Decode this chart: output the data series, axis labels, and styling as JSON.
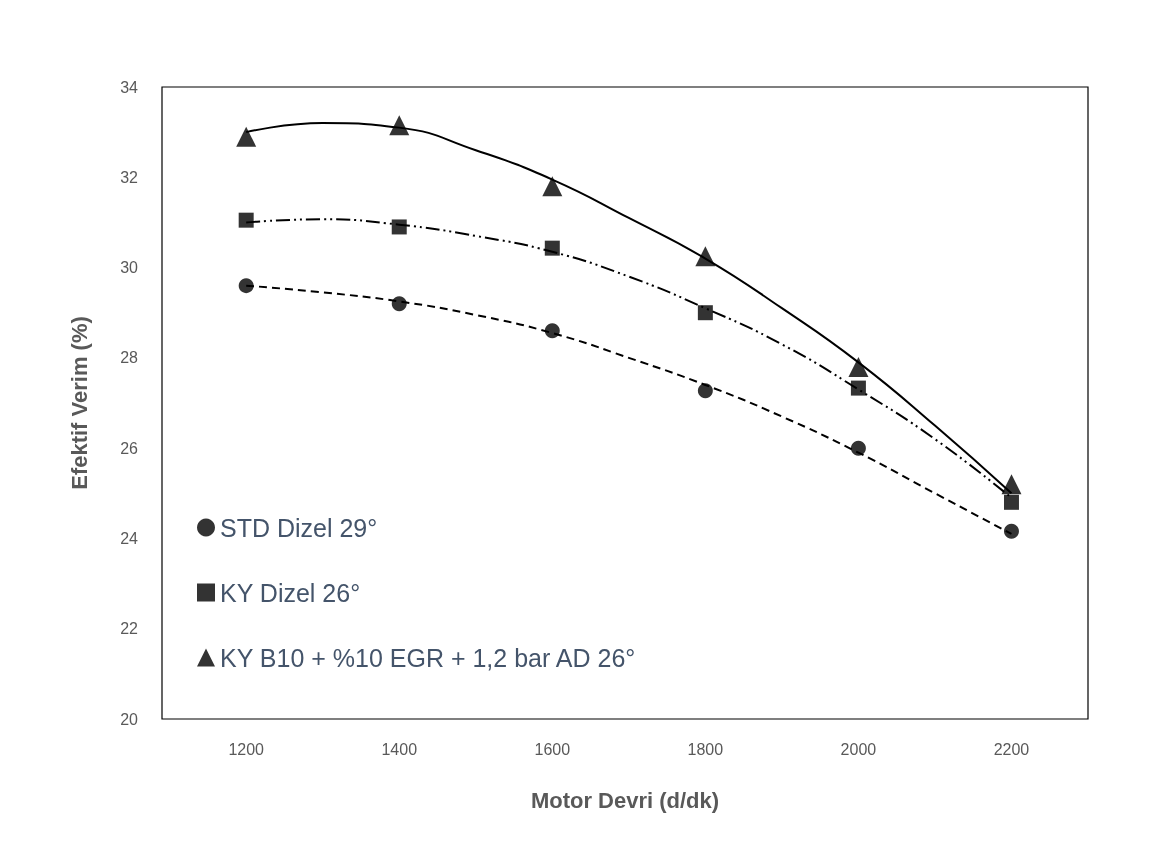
{
  "chart_data": {
    "type": "scatter",
    "xlabel": "Motor Devri (d/dk)",
    "ylabel": "Efektif Verim (%)",
    "xlim": [
      1090,
      2300
    ],
    "xticks": [
      1200,
      1400,
      1600,
      1800,
      2000,
      2200
    ],
    "ylim": [
      20,
      34
    ],
    "yticks": [
      20,
      22,
      24,
      26,
      28,
      30,
      32,
      34
    ],
    "grid": false,
    "legend": "bottom left",
    "x": [
      1200,
      1400,
      1600,
      1800,
      2000,
      2200
    ],
    "series": [
      {
        "name": "STD Dizel 29°",
        "color": "#000000",
        "marker": "circle",
        "values": [
          29.6,
          29.2,
          28.6,
          27.27,
          26.0,
          24.16
        ]
      },
      {
        "name": "KY Dizel 26°",
        "color": "#000000",
        "marker": "square",
        "values": [
          31.05,
          30.9,
          30.43,
          29.0,
          27.33,
          24.8
        ]
      },
      {
        "name": "KY B10 + %10 EGR + 1,2 bar AD 26°",
        "color": "#000000",
        "marker": "triangle",
        "values": [
          32.9,
          33.15,
          31.8,
          30.25,
          27.8,
          25.2
        ]
      },
      {
        "type": "line",
        "color": "#000000",
        "marker": "none",
        "line_style": "dashed",
        "x": [
          1200,
          1300,
          1400,
          1500,
          1600,
          1700,
          1800,
          1900,
          2000,
          2100,
          2200
        ],
        "values": [
          29.6,
          29.45,
          29.25,
          28.95,
          28.55,
          28.0,
          27.4,
          26.7,
          25.9,
          25.0,
          24.1
        ]
      },
      {
        "type": "line",
        "color": "#000000",
        "marker": "none",
        "line_style": "dotted",
        "x": [
          1200,
          1300,
          1400,
          1500,
          1600,
          1700,
          1800,
          1900,
          2000,
          2100,
          2200
        ],
        "values": [
          31.0,
          31.07,
          30.95,
          30.7,
          30.35,
          29.8,
          29.1,
          28.3,
          27.3,
          26.2,
          24.9
        ]
      },
      {
        "type": "line",
        "color": "#000000",
        "marker": "none",
        "line_style": "solid",
        "x": [
          1200,
          1300,
          1400,
          1500,
          1600,
          1700,
          1800,
          1900,
          2000,
          2100,
          2200
        ],
        "values": [
          33.0,
          33.2,
          33.1,
          32.6,
          31.95,
          31.1,
          30.2,
          29.1,
          27.9,
          26.5,
          25.0
        ]
      }
    ]
  }
}
